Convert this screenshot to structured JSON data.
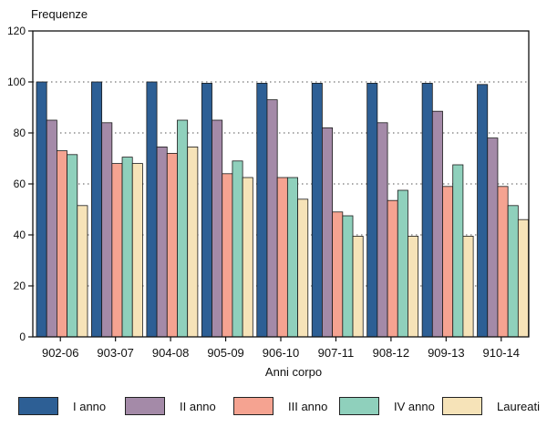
{
  "chart_data": {
    "type": "bar",
    "ylabel": "Frequenze",
    "xlabel": "Anni corpo",
    "ylim": [
      0,
      120
    ],
    "yticks": [
      0,
      20,
      40,
      60,
      80,
      100,
      120
    ],
    "grid": "dotted-horizontal",
    "legend_position": "bottom",
    "categories": [
      "902-06",
      "903-07",
      "904-08",
      "905-09",
      "906-10",
      "907-11",
      "908-12",
      "909-13",
      "910-14"
    ],
    "series": [
      {
        "name": "I anno",
        "color": "#2d5f95",
        "values": [
          100,
          100,
          100,
          99.5,
          99.5,
          99.5,
          99.5,
          99.5,
          99
        ]
      },
      {
        "name": "II anno",
        "color": "#a48aa8",
        "values": [
          85,
          84,
          74.5,
          85,
          93,
          82,
          84,
          88.5,
          78
        ]
      },
      {
        "name": "III anno",
        "color": "#f5a391",
        "values": [
          73,
          68,
          72,
          64,
          62.5,
          49,
          53.5,
          59,
          59
        ]
      },
      {
        "name": "IV anno",
        "color": "#8fd0bc",
        "values": [
          71.5,
          70.5,
          85,
          69,
          62.5,
          47.5,
          57.5,
          67.5,
          51.5
        ]
      },
      {
        "name": "Laureati",
        "color": "#f6e3b8",
        "values": [
          51.5,
          68,
          74.5,
          62.5,
          54,
          39.5,
          39.5,
          39.5,
          46
        ]
      }
    ]
  }
}
